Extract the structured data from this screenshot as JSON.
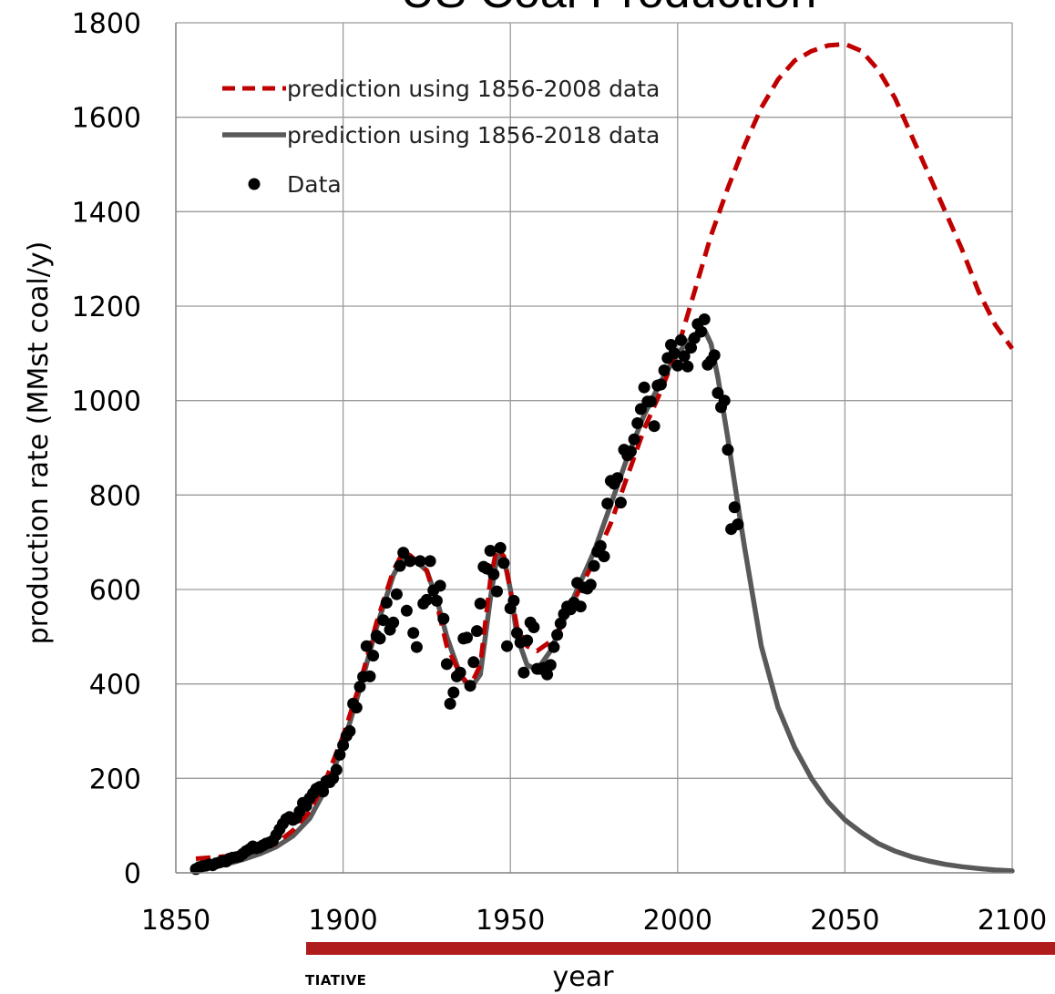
{
  "chart_data": {
    "type": "line",
    "title": "US Coal Production",
    "xlabel": "year",
    "ylabel": "production rate (MMst coal/y)",
    "xlim": [
      1850,
      2100
    ],
    "ylim": [
      0,
      1800
    ],
    "x_ticks": [
      "1850",
      "1900",
      "1950",
      "2000",
      "2050",
      "2100"
    ],
    "y_ticks": [
      "0",
      "200",
      "400",
      "600",
      "800",
      "1000",
      "1200",
      "1400",
      "1600",
      "1800"
    ],
    "grid": true,
    "legend_position": "top-left",
    "series": [
      {
        "name": "prediction using 1856-2008 data",
        "style": "dashed",
        "color": "#c00000",
        "points": [
          [
            1856,
            30
          ],
          [
            1860,
            32
          ],
          [
            1865,
            35
          ],
          [
            1870,
            40
          ],
          [
            1875,
            48
          ],
          [
            1880,
            62
          ],
          [
            1885,
            90
          ],
          [
            1890,
            130
          ],
          [
            1895,
            200
          ],
          [
            1900,
            290
          ],
          [
            1905,
            400
          ],
          [
            1910,
            530
          ],
          [
            1915,
            640
          ],
          [
            1918,
            680
          ],
          [
            1920,
            672
          ],
          [
            1925,
            640
          ],
          [
            1928,
            570
          ],
          [
            1931,
            480
          ],
          [
            1935,
            420
          ],
          [
            1938,
            395
          ],
          [
            1941,
            440
          ],
          [
            1944,
            620
          ],
          [
            1946,
            690
          ],
          [
            1948,
            670
          ],
          [
            1950,
            600
          ],
          [
            1952,
            520
          ],
          [
            1955,
            480
          ],
          [
            1958,
            470
          ],
          [
            1962,
            490
          ],
          [
            1965,
            520
          ],
          [
            1970,
            590
          ],
          [
            1975,
            660
          ],
          [
            1980,
            740
          ],
          [
            1985,
            840
          ],
          [
            1990,
            940
          ],
          [
            1995,
            1020
          ],
          [
            2000,
            1110
          ],
          [
            2005,
            1230
          ],
          [
            2010,
            1350
          ],
          [
            2015,
            1450
          ],
          [
            2020,
            1540
          ],
          [
            2025,
            1620
          ],
          [
            2030,
            1680
          ],
          [
            2035,
            1720
          ],
          [
            2040,
            1740
          ],
          [
            2045,
            1752
          ],
          [
            2050,
            1755
          ],
          [
            2055,
            1740
          ],
          [
            2060,
            1700
          ],
          [
            2065,
            1640
          ],
          [
            2070,
            1560
          ],
          [
            2075,
            1480
          ],
          [
            2080,
            1400
          ],
          [
            2085,
            1320
          ],
          [
            2090,
            1230
          ],
          [
            2095,
            1160
          ],
          [
            2100,
            1110
          ]
        ]
      },
      {
        "name": "prediction using 1856-2018 data",
        "style": "solid",
        "color": "#595959",
        "points": [
          [
            1856,
            5
          ],
          [
            1860,
            10
          ],
          [
            1865,
            18
          ],
          [
            1870,
            28
          ],
          [
            1875,
            40
          ],
          [
            1880,
            55
          ],
          [
            1885,
            78
          ],
          [
            1890,
            115
          ],
          [
            1895,
            180
          ],
          [
            1900,
            270
          ],
          [
            1905,
            390
          ],
          [
            1910,
            520
          ],
          [
            1915,
            630
          ],
          [
            1918,
            670
          ],
          [
            1920,
            672
          ],
          [
            1925,
            640
          ],
          [
            1928,
            580
          ],
          [
            1931,
            500
          ],
          [
            1935,
            420
          ],
          [
            1938,
            390
          ],
          [
            1941,
            420
          ],
          [
            1944,
            580
          ],
          [
            1946,
            670
          ],
          [
            1948,
            670
          ],
          [
            1950,
            600
          ],
          [
            1952,
            500
          ],
          [
            1955,
            440
          ],
          [
            1958,
            430
          ],
          [
            1962,
            470
          ],
          [
            1965,
            520
          ],
          [
            1970,
            600
          ],
          [
            1975,
            680
          ],
          [
            1980,
            780
          ],
          [
            1985,
            880
          ],
          [
            1990,
            970
          ],
          [
            1995,
            1040
          ],
          [
            2000,
            1100
          ],
          [
            2005,
            1140
          ],
          [
            2008,
            1150
          ],
          [
            2010,
            1120
          ],
          [
            2012,
            1050
          ],
          [
            2015,
            920
          ],
          [
            2018,
            780
          ],
          [
            2020,
            690
          ],
          [
            2025,
            480
          ],
          [
            2030,
            350
          ],
          [
            2035,
            265
          ],
          [
            2040,
            200
          ],
          [
            2045,
            150
          ],
          [
            2050,
            112
          ],
          [
            2055,
            85
          ],
          [
            2060,
            62
          ],
          [
            2065,
            46
          ],
          [
            2070,
            34
          ],
          [
            2075,
            25
          ],
          [
            2080,
            18
          ],
          [
            2085,
            13
          ],
          [
            2090,
            9
          ],
          [
            2095,
            6
          ],
          [
            2100,
            4
          ]
        ]
      },
      {
        "name": "Data",
        "style": "markers",
        "color": "#000000",
        "points": [
          [
            1856,
            8
          ],
          [
            1857,
            12
          ],
          [
            1858,
            14
          ],
          [
            1859,
            15
          ],
          [
            1860,
            18
          ],
          [
            1861,
            16
          ],
          [
            1862,
            20
          ],
          [
            1863,
            22
          ],
          [
            1864,
            25
          ],
          [
            1865,
            24
          ],
          [
            1866,
            30
          ],
          [
            1867,
            32
          ],
          [
            1868,
            33
          ],
          [
            1869,
            35
          ],
          [
            1870,
            40
          ],
          [
            1871,
            46
          ],
          [
            1872,
            50
          ],
          [
            1873,
            56
          ],
          [
            1874,
            52
          ],
          [
            1875,
            54
          ],
          [
            1876,
            58
          ],
          [
            1877,
            62
          ],
          [
            1878,
            64
          ],
          [
            1879,
            68
          ],
          [
            1880,
            80
          ],
          [
            1881,
            92
          ],
          [
            1882,
            104
          ],
          [
            1883,
            114
          ],
          [
            1884,
            118
          ],
          [
            1885,
            112
          ],
          [
            1886,
            116
          ],
          [
            1887,
            130
          ],
          [
            1888,
            148
          ],
          [
            1889,
            142
          ],
          [
            1890,
            158
          ],
          [
            1891,
            168
          ],
          [
            1892,
            178
          ],
          [
            1893,
            182
          ],
          [
            1894,
            172
          ],
          [
            1895,
            194
          ],
          [
            1896,
            192
          ],
          [
            1897,
            200
          ],
          [
            1898,
            218
          ],
          [
            1899,
            250
          ],
          [
            1900,
            270
          ],
          [
            1901,
            290
          ],
          [
            1902,
            300
          ],
          [
            1903,
            358
          ],
          [
            1904,
            350
          ],
          [
            1905,
            394
          ],
          [
            1906,
            415
          ],
          [
            1907,
            480
          ],
          [
            1908,
            416
          ],
          [
            1909,
            460
          ],
          [
            1910,
            502
          ],
          [
            1911,
            496
          ],
          [
            1912,
            535
          ],
          [
            1913,
            572
          ],
          [
            1914,
            515
          ],
          [
            1915,
            530
          ],
          [
            1916,
            590
          ],
          [
            1917,
            650
          ],
          [
            1918,
            678
          ],
          [
            1919,
            555
          ],
          [
            1920,
            660
          ],
          [
            1921,
            508
          ],
          [
            1922,
            478
          ],
          [
            1923,
            660
          ],
          [
            1924,
            570
          ],
          [
            1925,
            578
          ],
          [
            1926,
            660
          ],
          [
            1927,
            598
          ],
          [
            1928,
            576
          ],
          [
            1929,
            608
          ],
          [
            1930,
            538
          ],
          [
            1931,
            442
          ],
          [
            1932,
            358
          ],
          [
            1933,
            382
          ],
          [
            1934,
            416
          ],
          [
            1935,
            424
          ],
          [
            1936,
            496
          ],
          [
            1937,
            498
          ],
          [
            1938,
            396
          ],
          [
            1939,
            446
          ],
          [
            1940,
            512
          ],
          [
            1941,
            570
          ],
          [
            1942,
            648
          ],
          [
            1943,
            644
          ],
          [
            1944,
            682
          ],
          [
            1945,
            632
          ],
          [
            1946,
            596
          ],
          [
            1947,
            688
          ],
          [
            1948,
            656
          ],
          [
            1949,
            480
          ],
          [
            1950,
            560
          ],
          [
            1951,
            576
          ],
          [
            1952,
            508
          ],
          [
            1953,
            488
          ],
          [
            1954,
            424
          ],
          [
            1955,
            492
          ],
          [
            1956,
            530
          ],
          [
            1957,
            520
          ],
          [
            1958,
            432
          ],
          [
            1959,
            432
          ],
          [
            1960,
            434
          ],
          [
            1961,
            420
          ],
          [
            1962,
            440
          ],
          [
            1963,
            478
          ],
          [
            1964,
            504
          ],
          [
            1965,
            528
          ],
          [
            1966,
            548
          ],
          [
            1967,
            564
          ],
          [
            1968,
            558
          ],
          [
            1969,
            572
          ],
          [
            1970,
            614
          ],
          [
            1971,
            564
          ],
          [
            1972,
            604
          ],
          [
            1973,
            602
          ],
          [
            1974,
            610
          ],
          [
            1975,
            650
          ],
          [
            1976,
            680
          ],
          [
            1977,
            692
          ],
          [
            1978,
            670
          ],
          [
            1979,
            782
          ],
          [
            1980,
            830
          ],
          [
            1981,
            824
          ],
          [
            1982,
            836
          ],
          [
            1983,
            784
          ],
          [
            1984,
            896
          ],
          [
            1985,
            884
          ],
          [
            1986,
            892
          ],
          [
            1987,
            918
          ],
          [
            1988,
            952
          ],
          [
            1989,
            982
          ],
          [
            1990,
            1028
          ],
          [
            1991,
            998
          ],
          [
            1992,
            998
          ],
          [
            1993,
            946
          ],
          [
            1994,
            1032
          ],
          [
            1995,
            1034
          ],
          [
            1996,
            1064
          ],
          [
            1997,
            1090
          ],
          [
            1998,
            1118
          ],
          [
            1999,
            1100
          ],
          [
            2000,
            1074
          ],
          [
            2001,
            1128
          ],
          [
            2002,
            1094
          ],
          [
            2003,
            1072
          ],
          [
            2004,
            1112
          ],
          [
            2005,
            1132
          ],
          [
            2006,
            1162
          ],
          [
            2007,
            1146
          ],
          [
            2008,
            1172
          ],
          [
            2009,
            1076
          ],
          [
            2010,
            1084
          ],
          [
            2011,
            1096
          ],
          [
            2012,
            1016
          ],
          [
            2013,
            986
          ],
          [
            2014,
            1000
          ],
          [
            2015,
            896
          ],
          [
            2016,
            728
          ],
          [
            2017,
            774
          ],
          [
            2018,
            738
          ]
        ]
      }
    ]
  },
  "footer": {
    "bar_color": "#b01c1c",
    "label": "TIATIVE"
  }
}
